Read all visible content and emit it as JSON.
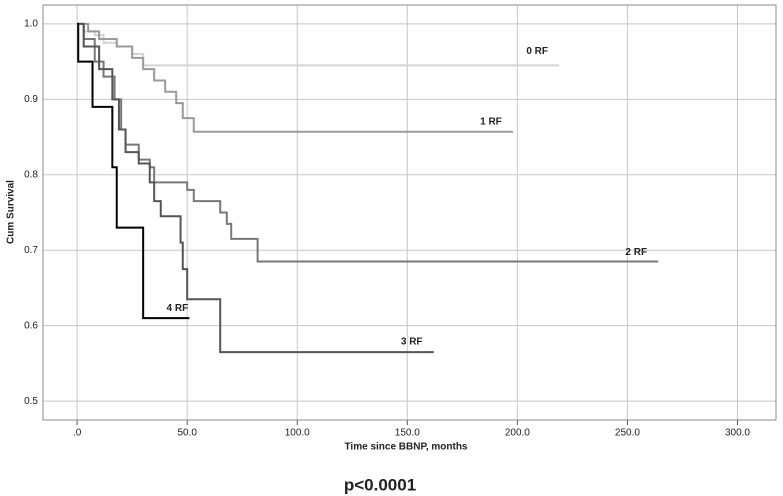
{
  "chart_data": {
    "type": "step",
    "ylabel": "Cum Survival",
    "xlabel": "Time since BBNP, months",
    "annotation": "p<0.0001",
    "xlim": [
      -15.5,
      317.5
    ],
    "ylim": [
      0.475,
      1.025
    ],
    "xticks": [
      {
        "value": 0,
        "label": ".0"
      },
      {
        "value": 50,
        "label": "50.0"
      },
      {
        "value": 100,
        "label": "100.0"
      },
      {
        "value": 150,
        "label": "150.0"
      },
      {
        "value": 200,
        "label": "200.0"
      },
      {
        "value": 250,
        "label": "250.0"
      },
      {
        "value": 300,
        "label": "300.0"
      }
    ],
    "yticks": [
      0.5,
      0.6,
      0.7,
      0.8,
      0.9,
      {
        "value": 1.0,
        "label": "1.0"
      }
    ],
    "grid": true,
    "series": [
      {
        "name": "0 RF",
        "color": "#d4d4d4",
        "x": [
          0,
          3,
          8,
          12,
          18,
          25,
          30,
          219
        ],
        "values": [
          1.0,
          0.99,
          0.985,
          0.975,
          0.97,
          0.96,
          0.945,
          0.945
        ]
      },
      {
        "name": "1 RF",
        "color": "#9a9a9a",
        "x": [
          0,
          5,
          10,
          18,
          25,
          30,
          35,
          40,
          45,
          48,
          53,
          198
        ],
        "values": [
          1.0,
          0.99,
          0.98,
          0.97,
          0.955,
          0.94,
          0.925,
          0.91,
          0.895,
          0.875,
          0.857,
          0.857
        ]
      },
      {
        "name": "2 RF",
        "color": "#787878",
        "x": [
          0,
          3,
          8,
          12,
          17,
          20,
          22,
          28,
          33,
          35,
          50,
          53,
          65,
          68,
          70,
          82,
          264
        ],
        "values": [
          1.0,
          0.98,
          0.95,
          0.93,
          0.9,
          0.86,
          0.84,
          0.82,
          0.81,
          0.79,
          0.78,
          0.765,
          0.75,
          0.735,
          0.715,
          0.685,
          0.685
        ]
      },
      {
        "name": "3 RF",
        "color": "#555555",
        "x": [
          0,
          3,
          10,
          16,
          19,
          22,
          28,
          33,
          35,
          38,
          47,
          48,
          50,
          65,
          162
        ],
        "values": [
          1.0,
          0.97,
          0.94,
          0.9,
          0.86,
          0.83,
          0.815,
          0.79,
          0.765,
          0.745,
          0.71,
          0.675,
          0.635,
          0.565,
          0.565
        ]
      },
      {
        "name": "4 RF",
        "color": "#000000",
        "x": [
          0,
          0.5,
          7,
          16,
          18,
          30,
          51
        ],
        "values": [
          1.0,
          0.95,
          0.89,
          0.81,
          0.73,
          0.61,
          0.61
        ]
      }
    ]
  }
}
